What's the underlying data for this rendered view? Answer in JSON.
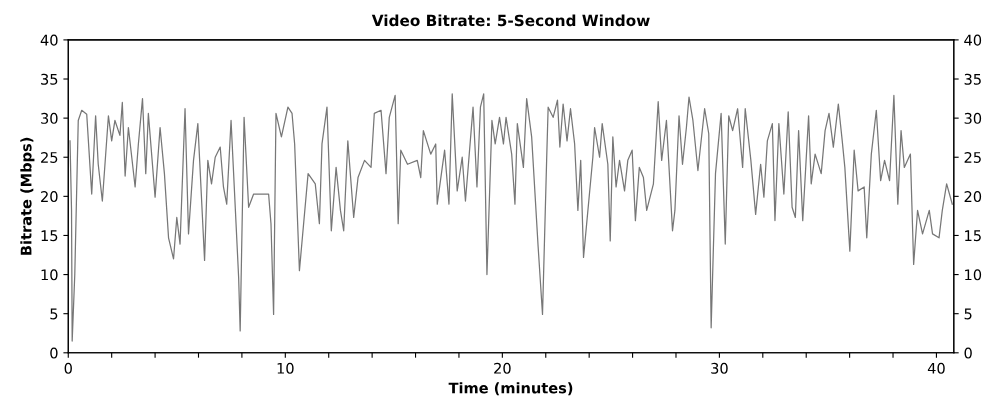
{
  "chart_data": {
    "type": "line",
    "title": "Video Bitrate: 5-Second Window",
    "xlabel": "Time (minutes)",
    "ylabel": "Bitrate (Mbps)",
    "xlim": [
      0,
      40.8
    ],
    "xticks": [
      0,
      {
        "value": 2,
        "label": null
      },
      {
        "value": 4,
        "label": null
      },
      {
        "value": 6,
        "label": null
      },
      {
        "value": 8,
        "label": null
      },
      10,
      {
        "value": 12,
        "label": null
      },
      {
        "value": 14,
        "label": null
      },
      {
        "value": 16,
        "label": null
      },
      {
        "value": 18,
        "label": null
      },
      20,
      {
        "value": 22,
        "label": null
      },
      {
        "value": 24,
        "label": null
      },
      {
        "value": 26,
        "label": null
      },
      {
        "value": 28,
        "label": null
      },
      30,
      {
        "value": 32,
        "label": null
      },
      {
        "value": 34,
        "label": null
      },
      {
        "value": 36,
        "label": null
      },
      {
        "value": 38,
        "label": null
      },
      40
    ],
    "ylim": [
      0,
      40
    ],
    "yticks": [
      0,
      5,
      10,
      15,
      20,
      25,
      30,
      35,
      40
    ],
    "y2lim": [
      0,
      40
    ],
    "y2ticks": [
      0,
      5,
      10,
      15,
      20,
      25,
      30,
      35,
      40
    ],
    "grid": false,
    "marker": "none",
    "line_style": "solid",
    "series": [
      {
        "color": "#777777",
        "x": [
          0.08,
          0.15,
          0.18,
          0.3,
          0.46,
          0.62,
          0.85,
          1.08,
          1.26,
          1.38,
          1.57,
          1.85,
          2.0,
          2.15,
          2.38,
          2.49,
          2.62,
          2.77,
          3.08,
          3.23,
          3.42,
          3.57,
          3.69,
          4.0,
          4.23,
          4.43,
          4.62,
          4.85,
          5.0,
          5.15,
          5.38,
          5.54,
          5.77,
          5.97,
          6.28,
          6.43,
          6.6,
          6.77,
          7.0,
          7.15,
          7.3,
          7.5,
          7.85,
          7.92,
          8.1,
          8.31,
          8.54,
          9.23,
          9.34,
          9.46,
          9.57,
          9.82,
          10.12,
          10.31,
          10.43,
          10.65,
          11.05,
          11.38,
          11.57,
          11.69,
          11.92,
          12.12,
          12.34,
          12.54,
          12.69,
          12.88,
          13.15,
          13.35,
          13.65,
          13.95,
          14.1,
          14.41,
          14.64,
          14.79,
          15.06,
          15.2,
          15.32,
          15.63,
          16.08,
          16.24,
          16.36,
          16.7,
          16.93,
          17.0,
          17.34,
          17.54,
          17.69,
          17.92,
          18.15,
          18.3,
          18.65,
          18.83,
          18.99,
          19.14,
          19.29,
          19.52,
          19.67,
          19.87,
          20.05,
          20.17,
          20.43,
          20.58,
          20.69,
          20.97,
          21.12,
          21.35,
          21.65,
          21.85,
          22.04,
          22.11,
          22.34,
          22.54,
          22.65,
          22.8,
          22.98,
          23.14,
          23.33,
          23.48,
          23.61,
          23.74,
          24.17,
          24.25,
          24.48,
          24.6,
          24.86,
          24.97,
          25.09,
          25.24,
          25.4,
          25.63,
          25.78,
          25.98,
          26.13,
          26.31,
          26.5,
          26.65,
          26.96,
          27.18,
          27.34,
          27.56,
          27.84,
          27.95,
          28.14,
          28.3,
          28.48,
          28.6,
          28.78,
          29.01,
          29.32,
          29.51,
          29.62,
          29.82,
          30.08,
          30.27,
          30.43,
          30.61,
          30.84,
          31.07,
          31.19,
          31.45,
          31.67,
          31.9,
          32.05,
          32.21,
          32.44,
          32.56,
          32.74,
          32.97,
          33.17,
          33.35,
          33.5,
          33.65,
          33.84,
          34.11,
          34.23,
          34.41,
          34.69,
          34.87,
          35.05,
          35.25,
          35.48,
          35.66,
          35.78,
          36.01,
          36.21,
          36.39,
          36.67,
          36.79,
          37.0,
          37.23,
          37.43,
          37.61,
          37.84,
          38.04,
          38.22,
          38.37,
          38.52,
          38.8,
          38.95,
          39.13,
          39.36,
          39.67,
          39.82,
          40.12,
          40.27,
          40.47,
          40.73
        ],
        "values": [
          27.1,
          18.2,
          1.5,
          10,
          29.7,
          31,
          30.5,
          20.3,
          30.3,
          24.1,
          19.4,
          30.3,
          27.1,
          29.7,
          27.8,
          32,
          22.6,
          28.8,
          21.2,
          26.7,
          32.5,
          22.9,
          30.6,
          19.9,
          28.8,
          22.9,
          14.7,
          12,
          17.3,
          13.9,
          31.2,
          15.2,
          24.6,
          29.3,
          11.8,
          24.6,
          21.6,
          25,
          26.3,
          21.2,
          19,
          29.7,
          9.6,
          2.8,
          30.1,
          18.6,
          20.3,
          20.3,
          16.5,
          4.9,
          30.6,
          27.6,
          31.4,
          30.6,
          26.7,
          10.5,
          22.9,
          21.6,
          16.5,
          26.7,
          31.4,
          15.6,
          23.7,
          18.2,
          15.6,
          27.1,
          17.3,
          22.4,
          24.6,
          23.7,
          30.6,
          31,
          22.9,
          30.1,
          32.9,
          16.5,
          25.9,
          24.1,
          24.6,
          22.4,
          28.4,
          25.4,
          26.7,
          19,
          25.9,
          19,
          33.1,
          20.7,
          25,
          19.4,
          31.4,
          21.2,
          31.4,
          33.1,
          10,
          29.7,
          26.7,
          30.1,
          26.7,
          30.1,
          25.4,
          19,
          29.3,
          23.7,
          32.5,
          27.6,
          13.5,
          4.9,
          24.6,
          31.4,
          30.1,
          32.3,
          26.3,
          31.8,
          27.1,
          31.2,
          26.7,
          18.2,
          24.6,
          12.2,
          25,
          28.8,
          25,
          29.3,
          24.1,
          14.3,
          27.6,
          21.2,
          24.6,
          20.7,
          24.6,
          25.9,
          16.9,
          23.7,
          22.4,
          18.2,
          21.6,
          32.1,
          24.6,
          29.7,
          15.6,
          18.2,
          30.3,
          24.1,
          28.8,
          32.7,
          29.7,
          23.3,
          31.2,
          28,
          3.2,
          22.9,
          30.6,
          13.9,
          30.3,
          28.4,
          31.2,
          23.7,
          31.2,
          24.6,
          17.7,
          24.1,
          19.9,
          27.1,
          29.3,
          16.9,
          29.3,
          20.3,
          30.8,
          18.6,
          17.3,
          28.4,
          16.9,
          30.3,
          21.6,
          25.4,
          22.9,
          28.4,
          30.6,
          26.3,
          31.8,
          27.1,
          23.7,
          13,
          25.9,
          20.7,
          21.2,
          14.7,
          25.4,
          31,
          22,
          24.6,
          22,
          32.9,
          19,
          28.4,
          23.7,
          25.4,
          11.3,
          18.2,
          15.2,
          18.2,
          15.2,
          14.7,
          18.2,
          21.6,
          19
        ]
      }
    ]
  }
}
